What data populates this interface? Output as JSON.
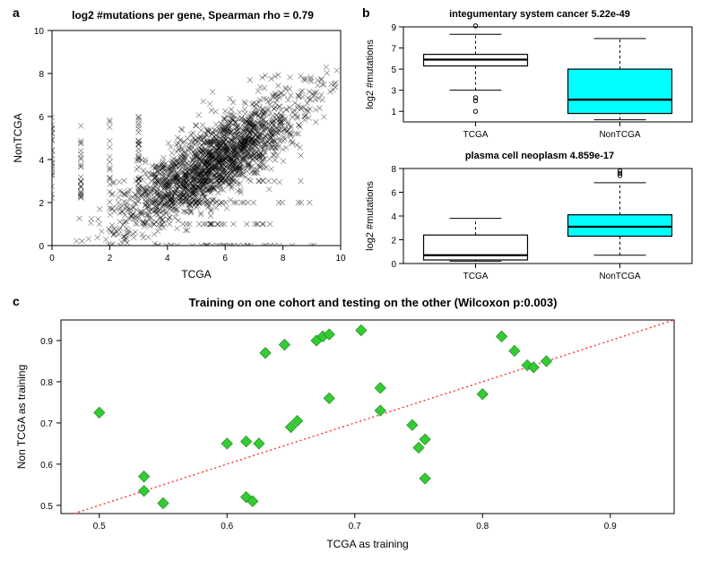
{
  "panel_a": {
    "label": "a",
    "title": "log2 #mutations per gene, Spearman rho =  0.79",
    "xlabel": "TCGA",
    "ylabel": "NonTCGA",
    "xlim": [
      0,
      10
    ],
    "ylim": [
      0,
      10
    ],
    "xticks": [
      0,
      2,
      4,
      6,
      8,
      10
    ],
    "yticks": [
      0,
      2,
      4,
      6,
      8,
      10
    ],
    "title_fontsize": 12,
    "label_fontsize": 12,
    "tick_fontsize": 10,
    "point_color": "#000000",
    "bg_color": "#ffffff",
    "n_points": 2200,
    "marker_size": 3
  },
  "panel_b": {
    "label": "b",
    "ylabel": "log2 #mutations",
    "categories": [
      "TCGA",
      "NonTCGA"
    ],
    "colors": [
      "#ffffff",
      "#00ffff"
    ],
    "label_fontsize": 11,
    "tick_fontsize": 10,
    "box1": {
      "title": "integumentary system cancer 5.22e-49",
      "ylim": [
        0,
        9
      ],
      "yticks": [
        1,
        3,
        5,
        7,
        9
      ],
      "tcga": {
        "min": 3.0,
        "q1": 5.3,
        "med": 5.9,
        "q3": 6.4,
        "max": 8.3,
        "outliers": [
          1.0,
          2.0,
          2.3,
          9.1
        ]
      },
      "nontcga": {
        "min": 0.2,
        "q1": 0.8,
        "med": 2.1,
        "q3": 5.0,
        "max": 7.9,
        "outliers": []
      }
    },
    "box2": {
      "title": "plasma cell neoplasm 4.859e-17",
      "ylim": [
        0,
        8
      ],
      "yticks": [
        0,
        2,
        4,
        6,
        8
      ],
      "tcga": {
        "min": 0.2,
        "q1": 0.3,
        "med": 0.7,
        "q3": 2.4,
        "max": 3.8,
        "outliers": []
      },
      "nontcga": {
        "min": 0.7,
        "q1": 2.3,
        "med": 3.1,
        "q3": 4.1,
        "max": 6.8,
        "outliers": [
          7.4,
          7.6,
          7.8
        ]
      }
    }
  },
  "panel_c": {
    "label": "c",
    "title": "Training on one cohort and testing on the other (Wilcoxon p:0.003)",
    "xlabel": "TCGA as training",
    "ylabel": "Non TCGA as training",
    "xlim": [
      0.47,
      0.95
    ],
    "ylim": [
      0.48,
      0.95
    ],
    "xticks": [
      0.5,
      0.6,
      0.7,
      0.8,
      0.9
    ],
    "yticks": [
      0.5,
      0.6,
      0.7,
      0.8,
      0.9
    ],
    "title_fontsize": 13,
    "label_fontsize": 12,
    "tick_fontsize": 10,
    "point_color": "#33cc33",
    "line_color": "#ff3333",
    "marker_size": 8,
    "points": [
      [
        0.5,
        0.725
      ],
      [
        0.535,
        0.57
      ],
      [
        0.535,
        0.535
      ],
      [
        0.55,
        0.505
      ],
      [
        0.6,
        0.65
      ],
      [
        0.615,
        0.655
      ],
      [
        0.615,
        0.52
      ],
      [
        0.625,
        0.65
      ],
      [
        0.62,
        0.51
      ],
      [
        0.63,
        0.87
      ],
      [
        0.645,
        0.89
      ],
      [
        0.65,
        0.69
      ],
      [
        0.655,
        0.705
      ],
      [
        0.67,
        0.9
      ],
      [
        0.675,
        0.91
      ],
      [
        0.68,
        0.915
      ],
      [
        0.68,
        0.76
      ],
      [
        0.705,
        0.925
      ],
      [
        0.72,
        0.785
      ],
      [
        0.72,
        0.73
      ],
      [
        0.745,
        0.695
      ],
      [
        0.75,
        0.64
      ],
      [
        0.755,
        0.66
      ],
      [
        0.755,
        0.565
      ],
      [
        0.8,
        0.77
      ],
      [
        0.815,
        0.91
      ],
      [
        0.825,
        0.875
      ],
      [
        0.835,
        0.84
      ],
      [
        0.84,
        0.835
      ],
      [
        0.85,
        0.85
      ]
    ]
  }
}
